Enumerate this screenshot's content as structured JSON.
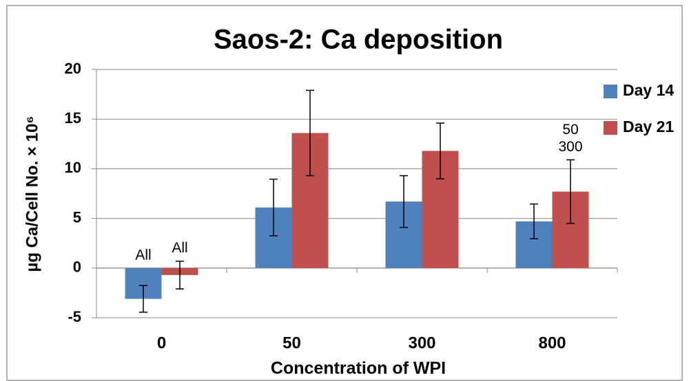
{
  "chart_data": {
    "type": "bar",
    "title": "Saos-2: Ca deposition",
    "x_label": "Concentration of WPI",
    "y_label": "µg Ca/Cell No. × 10⁶",
    "categories": [
      "0",
      "50",
      "300",
      "800"
    ],
    "series": [
      {
        "name": "Day 14",
        "color": "#4f81bd",
        "values": [
          -3.1,
          6.1,
          6.7,
          4.7
        ],
        "errors": [
          1.35,
          2.85,
          2.6,
          1.75
        ],
        "annotations": [
          [
            "All"
          ],
          [],
          [],
          []
        ]
      },
      {
        "name": "Day 21",
        "color": "#c0504d",
        "values": [
          -0.7,
          13.6,
          11.8,
          7.7
        ],
        "errors": [
          1.4,
          4.3,
          2.8,
          3.2
        ],
        "annotations": [
          [
            "All"
          ],
          [],
          [],
          [
            "50",
            "300"
          ]
        ]
      }
    ],
    "ylim": [
      -5,
      20
    ],
    "yticks": [
      -5,
      0,
      5,
      10,
      15,
      20
    ],
    "grid": true,
    "legend": "right"
  }
}
